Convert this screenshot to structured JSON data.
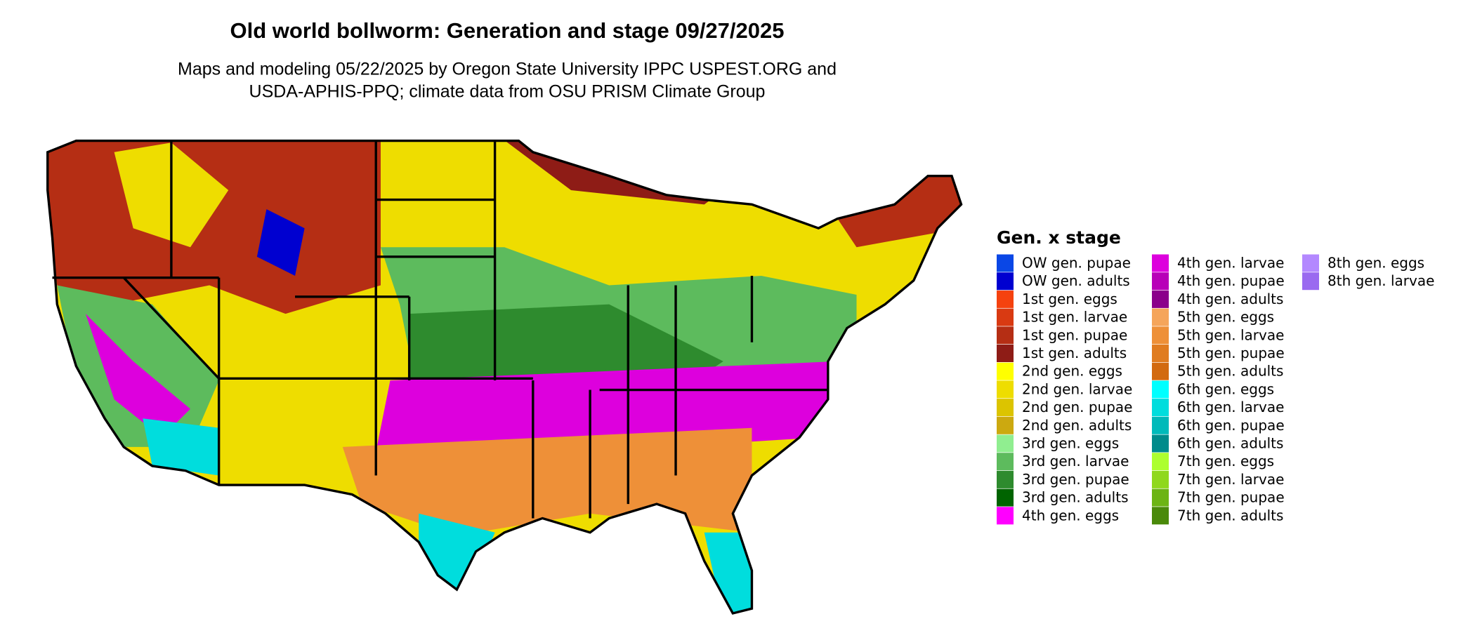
{
  "title": "Old world bollworm: Generation and stage 09/27/2025",
  "subtitle": [
    "Maps and modeling 05/22/2025 by Oregon State University IPPC USPEST.ORG and",
    "USDA-APHIS-PPQ; climate data from OSU PRISM Climate Group"
  ],
  "legend": {
    "title": "Gen. x stage",
    "columns": [
      15,
      15,
      2
    ],
    "items": [
      {
        "label": "OW gen. pupae",
        "color": "#0a47e6"
      },
      {
        "label": "OW gen. adults",
        "color": "#0000d0"
      },
      {
        "label": "1st gen. eggs",
        "color": "#f5420f"
      },
      {
        "label": "1st gen. larvae",
        "color": "#d93a12"
      },
      {
        "label": "1st gen. pupae",
        "color": "#b52e14"
      },
      {
        "label": "1st gen. adults",
        "color": "#8e1c16"
      },
      {
        "label": "2nd gen. eggs",
        "color": "#ffff00"
      },
      {
        "label": "2nd gen. larvae",
        "color": "#eedd00"
      },
      {
        "label": "2nd gen. pupae",
        "color": "#dcc400"
      },
      {
        "label": "2nd gen. adults",
        "color": "#cca910"
      },
      {
        "label": "3rd gen. eggs",
        "color": "#90ee90"
      },
      {
        "label": "3rd gen. larvae",
        "color": "#5dbb5d"
      },
      {
        "label": "3rd gen. pupae",
        "color": "#2e8b2e"
      },
      {
        "label": "3rd gen. adults",
        "color": "#006400"
      },
      {
        "label": "4th gen. eggs",
        "color": "#ff00ff"
      },
      {
        "label": "4th gen. larvae",
        "color": "#dd00dd"
      },
      {
        "label": "4th gen. pupae",
        "color": "#b800b8"
      },
      {
        "label": "4th gen. adults",
        "color": "#8b008b"
      },
      {
        "label": "5th gen. eggs",
        "color": "#f5a55a"
      },
      {
        "label": "5th gen. larvae",
        "color": "#ee9038"
      },
      {
        "label": "5th gen. pupae",
        "color": "#e07c20"
      },
      {
        "label": "5th gen. adults",
        "color": "#d26a10"
      },
      {
        "label": "6th gen. eggs",
        "color": "#00ffff"
      },
      {
        "label": "6th gen. larvae",
        "color": "#00dddd"
      },
      {
        "label": "6th gen. pupae",
        "color": "#00baba"
      },
      {
        "label": "6th gen. adults",
        "color": "#008b8b"
      },
      {
        "label": "7th gen. eggs",
        "color": "#adff2f"
      },
      {
        "label": "7th gen. larvae",
        "color": "#8fd81c"
      },
      {
        "label": "7th gen. pupae",
        "color": "#6cb414"
      },
      {
        "label": "7th gen. adults",
        "color": "#4a8a0a"
      },
      {
        "label": "8th gen. eggs",
        "color": "#b388ff"
      },
      {
        "label": "8th gen. larvae",
        "color": "#9a6af0"
      }
    ]
  }
}
